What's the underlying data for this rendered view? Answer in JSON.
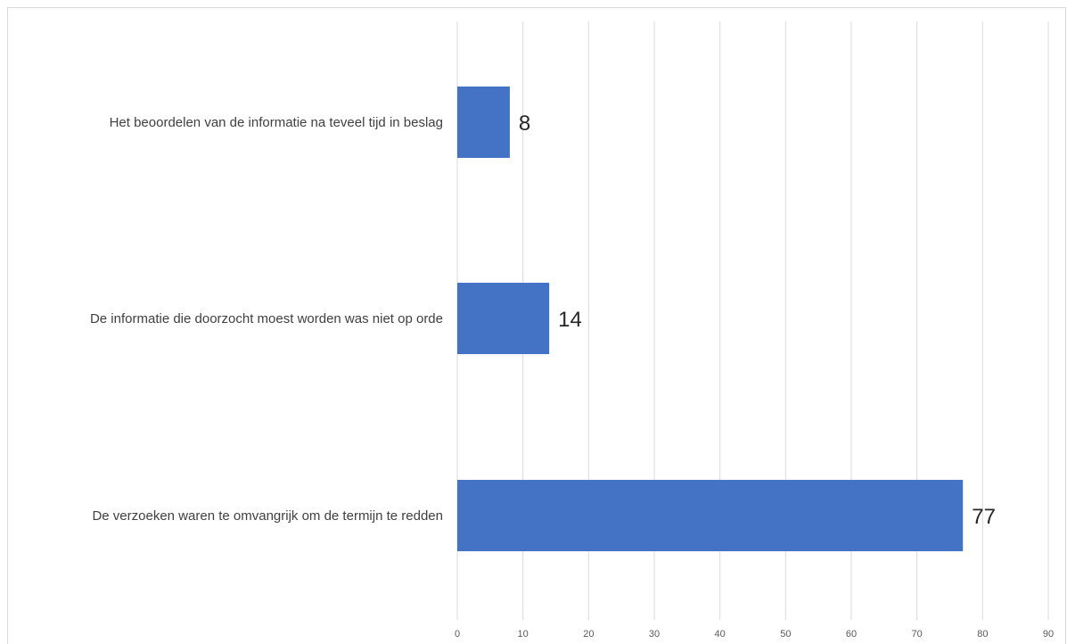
{
  "chart_data": {
    "type": "bar",
    "orientation": "horizontal",
    "categories": [
      "Het beoordelen van de informatie na teveel tijd in beslag",
      "De informatie die doorzocht moest worden was niet op orde",
      "De verzoeken waren te omvangrijk om de termijn te redden"
    ],
    "values": [
      8,
      14,
      77
    ],
    "data_labels": [
      "8",
      "14",
      "77"
    ],
    "xlim": [
      0,
      90
    ],
    "x_ticks": [
      0,
      10,
      20,
      30,
      40,
      50,
      60,
      70,
      80,
      90
    ],
    "x_tick_labels": [
      "0",
      "10",
      "20",
      "30",
      "40",
      "50",
      "60",
      "70",
      "80",
      "90"
    ],
    "grid": "vertical",
    "bar_color": "#4472C4",
    "gridline_color": "#d9d9d9",
    "title": "",
    "xlabel": "",
    "ylabel": "",
    "legend": "none"
  }
}
